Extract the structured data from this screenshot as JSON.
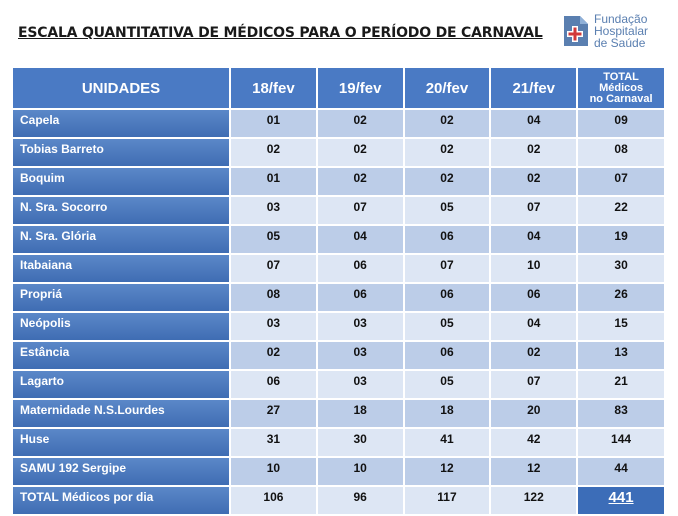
{
  "title": "ESCALA QUANTITATIVA  DE MÉDICOS PARA O PERÍODO DE CARNAVAL",
  "logo": {
    "line1": "Fundação",
    "line2": "Hospitalar",
    "line3": "de Saúde",
    "mark_color": "#5a7fb0",
    "cross_color": "#d23a3a"
  },
  "header": {
    "unidades": "UNIDADES",
    "dates": [
      "18/fev",
      "19/fev",
      "20/fev",
      "21/fev"
    ],
    "total_line1": "TOTAL",
    "total_line2": "Médicos",
    "total_line3": "no Carnaval"
  },
  "rows": [
    {
      "name": "Capela",
      "values": [
        "01",
        "02",
        "02",
        "04"
      ],
      "total": "09"
    },
    {
      "name": "Tobias Barreto",
      "values": [
        "02",
        "02",
        "02",
        "02"
      ],
      "total": "08"
    },
    {
      "name": "Boquim",
      "values": [
        "01",
        "02",
        "02",
        "02"
      ],
      "total": "07"
    },
    {
      "name": "N. Sra. Socorro",
      "values": [
        "03",
        "07",
        "05",
        "07"
      ],
      "total": "22"
    },
    {
      "name": "N. Sra. Glória",
      "values": [
        "05",
        "04",
        "06",
        "04"
      ],
      "total": "19"
    },
    {
      "name": "Itabaiana",
      "values": [
        "07",
        "06",
        "07",
        "10"
      ],
      "total": "30"
    },
    {
      "name": "Propriá",
      "values": [
        "08",
        "06",
        "06",
        "06"
      ],
      "total": "26"
    },
    {
      "name": "Neópolis",
      "values": [
        "03",
        "03",
        "05",
        "04"
      ],
      "total": "15"
    },
    {
      "name": "Estância",
      "values": [
        "02",
        "03",
        "06",
        "02"
      ],
      "total": "13"
    },
    {
      "name": "Lagarto",
      "values": [
        "06",
        "03",
        "05",
        "07"
      ],
      "total": "21"
    },
    {
      "name": "Maternidade N.S.Lourdes",
      "values": [
        "27",
        "18",
        "18",
        "20"
      ],
      "total": "83"
    },
    {
      "name": "Huse",
      "values": [
        "31",
        "30",
        "41",
        "42"
      ],
      "total": "144"
    },
    {
      "name": "SAMU 192 Sergipe",
      "values": [
        "10",
        "10",
        "12",
        "12"
      ],
      "total": "44"
    }
  ],
  "totals": {
    "label": "TOTAL  Médicos por dia",
    "values": [
      "106",
      "96",
      "117",
      "122"
    ],
    "grand": "441"
  },
  "colors": {
    "header_bg": "#4a7ac4",
    "row_dark": "#bccde8",
    "row_light": "#dde6f4",
    "grand_bg": "#3c6db8"
  }
}
